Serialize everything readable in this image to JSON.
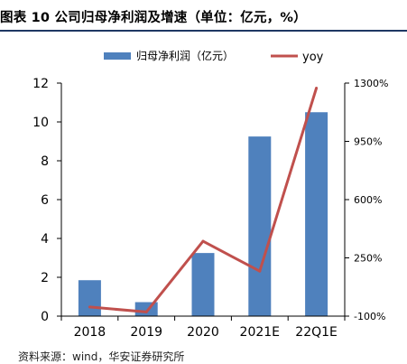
{
  "figure_title": "图表 10 公司归母净利润及增速（单位：亿元，%）",
  "source_note": "资料来源：wind，华安证券研究所",
  "chart_data": {
    "type": "bar",
    "categories": [
      "2018",
      "2019",
      "2020",
      "2021E",
      "22Q1E"
    ],
    "series": [
      {
        "name": "归母净利润（亿元）",
        "type": "bar",
        "axis": "left",
        "color": "#4f81bd",
        "values": [
          1.85,
          0.72,
          3.25,
          9.25,
          10.5
        ]
      },
      {
        "name": "yoy",
        "type": "line",
        "axis": "right",
        "color": "#c0504d",
        "values": [
          -45,
          -75,
          350,
          170,
          1270
        ]
      }
    ],
    "left_axis": {
      "ylim": [
        0,
        12
      ],
      "ticks": [
        "0",
        "2",
        "4",
        "6",
        "8",
        "10",
        "12"
      ]
    },
    "right_axis": {
      "ylim": [
        -100,
        1300
      ],
      "ticks": [
        "-100%",
        "250%",
        "600%",
        "950%",
        "1300%"
      ]
    },
    "legend_placement": "top-center",
    "grid": false
  }
}
